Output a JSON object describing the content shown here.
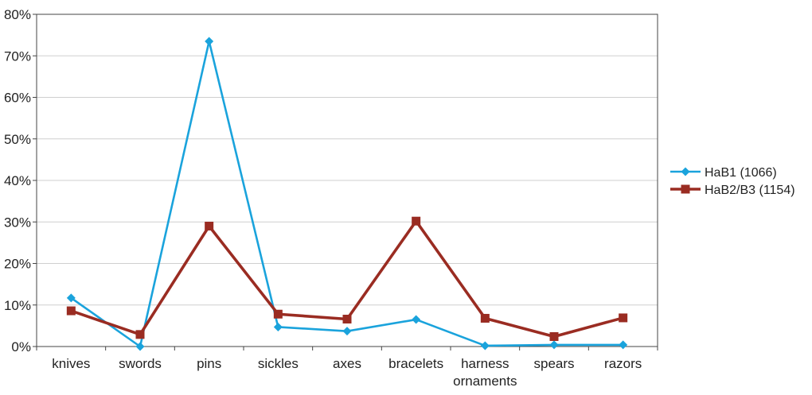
{
  "chart_data": {
    "type": "line",
    "categories": [
      [
        "knives"
      ],
      [
        "swords"
      ],
      [
        "pins"
      ],
      [
        "sickles"
      ],
      [
        "axes"
      ],
      [
        "bracelets"
      ],
      [
        "harness",
        "ornaments"
      ],
      [
        "spears"
      ],
      [
        "razors"
      ]
    ],
    "y_ticks": [
      "0%",
      "10%",
      "20%",
      "30%",
      "40%",
      "50%",
      "60%",
      "70%",
      "80%"
    ],
    "ylim": [
      0,
      80
    ],
    "grid": true,
    "legend_position": "right",
    "series": [
      {
        "name": "HaB1 (1066)",
        "color": "#1aa3dc",
        "marker": "diamond",
        "values": [
          11.7,
          0,
          73.5,
          4.7,
          3.7,
          6.5,
          0.2,
          0.4,
          0.4
        ]
      },
      {
        "name": "HaB2/B3 (1154)",
        "color": "#9a2c22",
        "marker": "square",
        "values": [
          8.6,
          2.9,
          29.0,
          7.8,
          6.6,
          30.2,
          6.8,
          2.4,
          6.9
        ]
      }
    ]
  }
}
